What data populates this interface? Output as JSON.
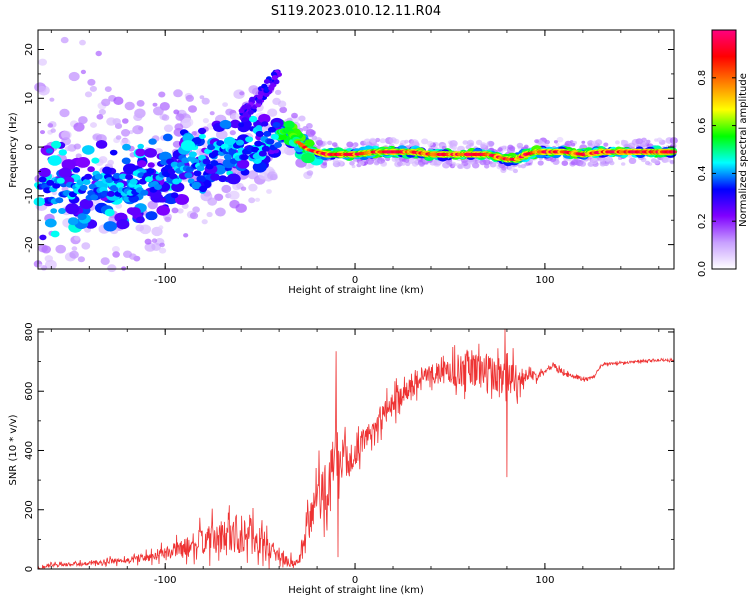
{
  "title": "S119.2023.010.12.11.R04",
  "chart_data": [
    {
      "type": "heatmap",
      "xlabel": "Height of straight line (km)",
      "ylabel": "Frequency (Hz)",
      "xlim": [
        -167,
        168
      ],
      "ylim": [
        -25,
        24
      ],
      "x_ticks": [
        -100,
        0,
        100
      ],
      "y_ticks": [
        20,
        10,
        0,
        -10,
        -20
      ],
      "colorbar": {
        "label": "Normalized spectral amplitude",
        "range": [
          0,
          1
        ],
        "ticks": [
          "0.0",
          "0.2",
          "0.4",
          "0.6",
          "0.8"
        ],
        "tick_values": [
          0.0,
          0.2,
          0.4,
          0.6,
          0.8
        ],
        "colors": [
          "#ffffff",
          "#c8a0ff",
          "#8000ff",
          "#0000ff",
          "#00ffff",
          "#00ff00",
          "#ffff00",
          "#ff8000",
          "#ff0000",
          "#ff0080"
        ]
      },
      "ridge": {
        "x": [
          -167,
          -150,
          -130,
          -110,
          -90,
          -70,
          -55,
          -45,
          -40,
          -35,
          -30,
          -25,
          -20,
          -15,
          -10,
          -5,
          0,
          10,
          20,
          30,
          40,
          50,
          60,
          70,
          75,
          80,
          85,
          90,
          95,
          100,
          110,
          120,
          130,
          140,
          150,
          160,
          168
        ],
        "y": [
          -9,
          -8.5,
          -8,
          -7,
          -4,
          -1,
          0,
          1.5,
          3,
          3.5,
          1,
          -0.5,
          -1,
          -1.5,
          -1.5,
          -1.5,
          -1.5,
          -1,
          -1,
          -1,
          -1.5,
          -1.5,
          -1.5,
          -1.5,
          -2,
          -2.5,
          -2.5,
          -1.5,
          -1,
          -1,
          -1,
          -1.5,
          -1,
          -1,
          -1,
          -1,
          -1
        ]
      }
    },
    {
      "type": "line",
      "xlabel": "Height of straight line (km)",
      "ylabel": "SNR (10 * v/v)",
      "xlim": [
        -167,
        168
      ],
      "ylim": [
        0,
        810
      ],
      "x_ticks": [
        -100,
        0,
        100
      ],
      "y_ticks": [
        0,
        200,
        400,
        600,
        800
      ],
      "color": "#ee3333",
      "envelope": {
        "x": [
          -167,
          -160,
          -150,
          -140,
          -130,
          -120,
          -110,
          -100,
          -90,
          -80,
          -70,
          -60,
          -55,
          -50,
          -45,
          -40,
          -35,
          -30,
          -28,
          -25,
          -20,
          -15,
          -12,
          -10,
          -5,
          0,
          5,
          10,
          15,
          20,
          25,
          30,
          35,
          40,
          45,
          50,
          55,
          60,
          65,
          70,
          75,
          80,
          85,
          90,
          95,
          100,
          102,
          105,
          108,
          110,
          115,
          120,
          125,
          130,
          140,
          150,
          160,
          168
        ],
        "y": [
          5,
          12,
          15,
          18,
          25,
          30,
          40,
          55,
          70,
          95,
          105,
          125,
          115,
          95,
          70,
          40,
          25,
          20,
          40,
          150,
          230,
          280,
          300,
          330,
          350,
          390,
          440,
          480,
          520,
          560,
          590,
          620,
          650,
          660,
          660,
          665,
          670,
          680,
          675,
          660,
          650,
          670,
          640,
          655,
          650,
          670,
          680,
          690,
          670,
          660,
          650,
          640,
          645,
          690,
          695,
          700,
          705,
          705
        ]
      },
      "noise_amplitude": {
        "x": [
          -167,
          -120,
          -100,
          -80,
          -60,
          -50,
          -40,
          -30,
          -20,
          -10,
          0,
          20,
          40,
          60,
          80,
          90,
          100,
          120,
          168
        ],
        "y": [
          10,
          20,
          40,
          90,
          150,
          100,
          40,
          30,
          180,
          220,
          80,
          80,
          60,
          130,
          150,
          40,
          20,
          10,
          8
        ]
      },
      "spikes": [
        {
          "x": -38,
          "y": 5
        },
        {
          "x": -10,
          "y": 735
        },
        {
          "x": -9,
          "y": 40
        },
        {
          "x": 80,
          "y": 310
        },
        {
          "x": 79,
          "y": 810
        }
      ]
    }
  ]
}
